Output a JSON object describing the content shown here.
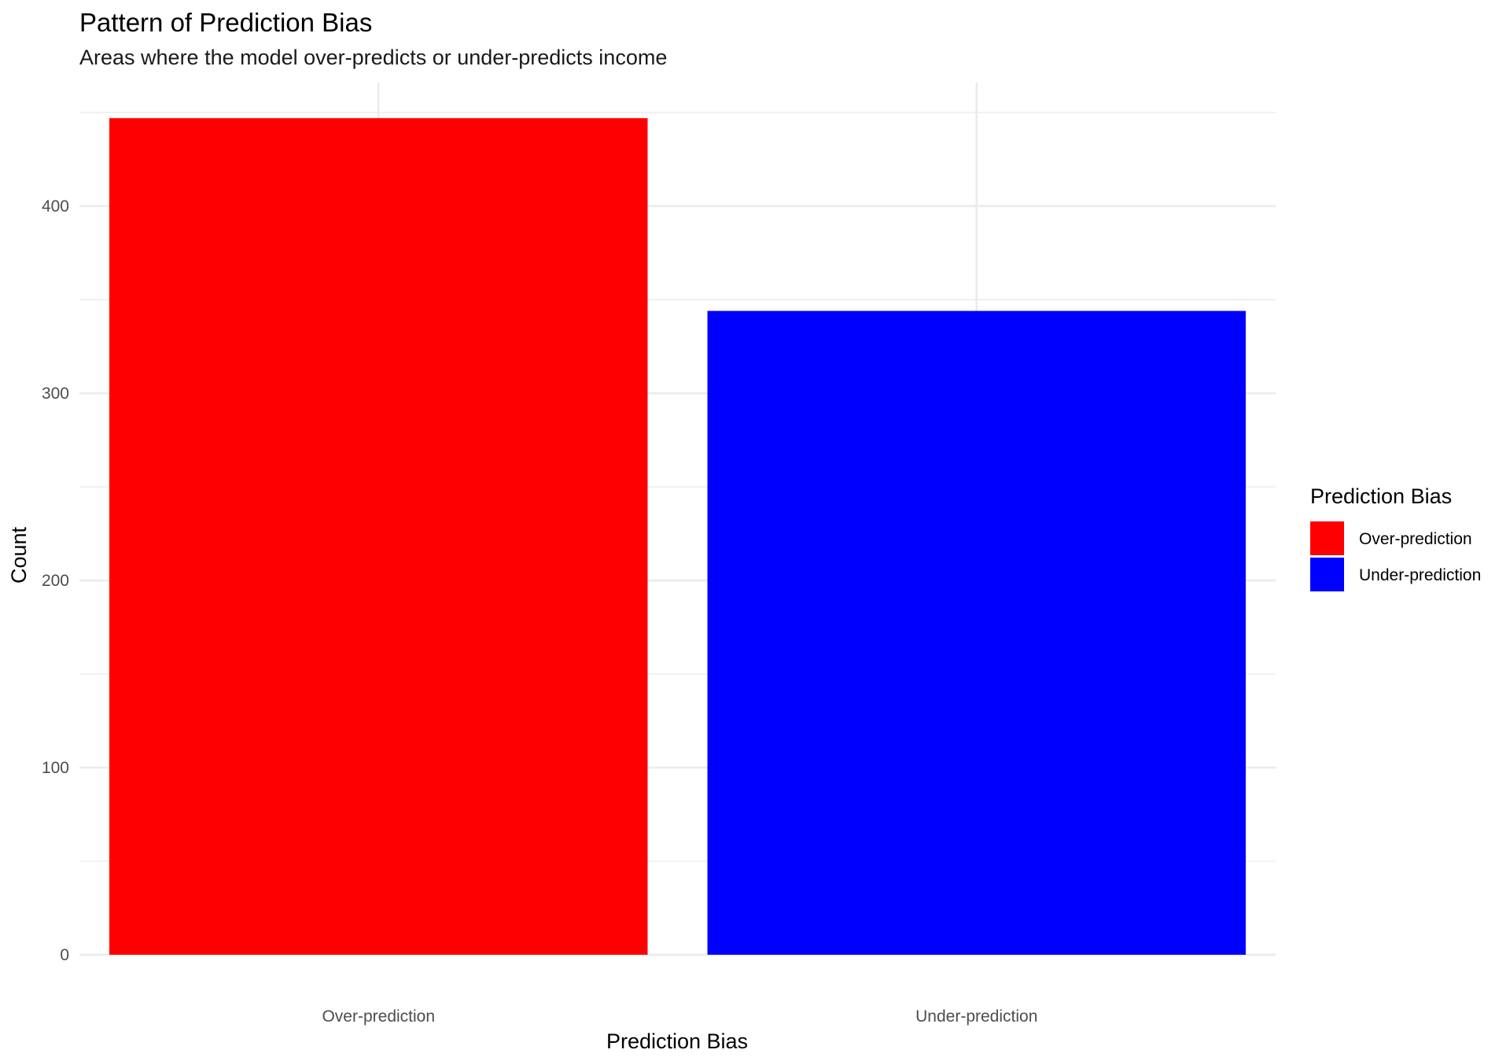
{
  "chart_data": {
    "type": "bar",
    "title": "Pattern of Prediction Bias",
    "subtitle": "Areas where the model over-predicts or under-predicts income",
    "xlabel": "Prediction Bias",
    "ylabel": "Count",
    "categories": [
      "Over-prediction",
      "Under-prediction"
    ],
    "values": [
      447,
      344
    ],
    "colors": [
      "#ff0000",
      "#0000ff"
    ],
    "ylim": [
      0,
      466
    ],
    "yticks": [
      0,
      100,
      200,
      300,
      400
    ],
    "ytick_labels": [
      "0",
      "100",
      "200",
      "300",
      "400"
    ],
    "grid": true,
    "legend": {
      "title": "Prediction Bias",
      "position": "right",
      "items": [
        {
          "label": "Over-prediction",
          "color": "#ff0000"
        },
        {
          "label": "Under-prediction",
          "color": "#0000ff"
        }
      ]
    }
  }
}
